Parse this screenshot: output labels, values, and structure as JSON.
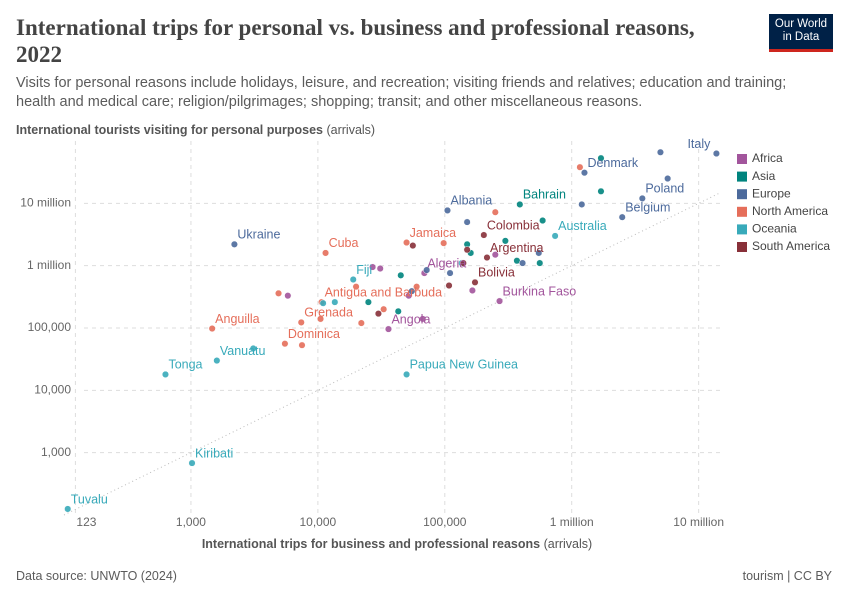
{
  "chart_data": {
    "type": "scatter",
    "title": "International trips for personal vs. business and professional reasons, 2022",
    "subtitle": "Visits for personal reasons include holidays, leisure, and recreation; visiting friends and relatives; education and training; health and medical care; religion/pilgrimages; shopping; transit; and other miscellaneous reasons.",
    "y_label": "International tourists visiting for personal purposes",
    "y_label_units": "(arrivals)",
    "x_label": "International trips for business and professional reasons",
    "x_label_units": "(arrivals)",
    "source": "Data source: UNWTO (2024)",
    "license": "tourism | CC BY",
    "logo": [
      "Our World",
      "in Data"
    ],
    "log_x": true,
    "log_y": true,
    "grid": true,
    "legend": "right",
    "xlim": [
      100,
      15000000
    ],
    "ylim": [
      100,
      100000000
    ],
    "xticks": [
      123,
      {
        "value": 1000,
        "label": "1,000"
      },
      {
        "value": 10000,
        "label": "10,000"
      },
      {
        "value": 100000,
        "label": "100,000"
      },
      {
        "value": 1000000,
        "label": "1 million"
      },
      {
        "value": 10000000,
        "label": "10 million"
      }
    ],
    "yticks": [
      {
        "value": 1000,
        "label": "1,000"
      },
      {
        "value": 10000,
        "label": "10,000"
      },
      {
        "value": 100000,
        "label": "100,000"
      },
      {
        "value": 1000000,
        "label": "1 million"
      },
      {
        "value": 10000000,
        "label": "10 million"
      }
    ],
    "series": [
      {
        "name": "Africa",
        "color": "#a2559c",
        "x": [
          270000,
          36000,
          69000,
          31000,
          27000,
          5800,
          52000,
          67000,
          165000,
          250000
        ],
        "values": [
          270000,
          96000,
          760000,
          900000,
          950000,
          330000,
          330000,
          140000,
          400000,
          1500000
        ],
        "labels": [
          "Burkina Faso",
          "Angola",
          "Algeria",
          null,
          null,
          null,
          null,
          null,
          null,
          null
        ]
      },
      {
        "name": "Asia",
        "color": "#00847e",
        "x": [
          390000,
          1700000,
          1700000,
          590000,
          560000,
          370000,
          300000,
          150000,
          160000,
          45000,
          43000,
          25000
        ],
        "values": [
          9600000,
          53000000,
          15600000,
          5300000,
          1100000,
          1200000,
          2500000,
          2200000,
          1600000,
          700000,
          185000,
          260000
        ],
        "labels": [
          "Bahrain",
          null,
          null,
          null,
          null,
          null,
          null,
          null,
          null,
          null,
          null,
          null
        ]
      },
      {
        "name": "Europe",
        "color": "#4c6a9c",
        "x": [
          13800000,
          1260000,
          3600000,
          2500000,
          105000,
          2200,
          5000000,
          5700000,
          1200000,
          150000,
          550000,
          110000,
          410000,
          55000,
          72000
        ],
        "values": [
          63000000,
          31000000,
          12000000,
          6000000,
          7700000,
          2200000,
          66000000,
          25000000,
          9600000,
          5000000,
          1600000,
          760000,
          1100000,
          390000,
          850000
        ],
        "labels": [
          "Italy",
          "Denmark",
          "Poland",
          "Belgium",
          "Albania",
          "Ukraine",
          null,
          null,
          null,
          null,
          null,
          null,
          null,
          null,
          null
        ]
      },
      {
        "name": "North America",
        "color": "#e56e5a",
        "x": [
          50000,
          11500,
          10700,
          7400,
          1470,
          5500,
          1160000,
          250000,
          98000,
          4900,
          10500,
          7500,
          22000,
          33000,
          20000,
          60000
        ],
        "values": [
          2350000,
          1600000,
          260000,
          123000,
          98000,
          56000,
          38000000,
          7200000,
          2300000,
          360000,
          140000,
          53000,
          120000,
          200000,
          460000,
          460000
        ],
        "labels": [
          "Jamaica",
          "Cuba",
          "Antigua and Barbuda",
          "Grenada",
          "Anguilla",
          "Dominica",
          null,
          null,
          null,
          null,
          null,
          null,
          null,
          null,
          null,
          null
        ]
      },
      {
        "name": "Oceania",
        "color": "#38aaba",
        "x": [
          740000,
          19000,
          1600,
          630,
          50000,
          1020,
          107,
          11000,
          13600,
          3100,
          136000
        ],
        "values": [
          3000000,
          600000,
          30000,
          18000,
          18000,
          680,
          125,
          250000,
          260000,
          47000,
          1100000
        ],
        "labels": [
          "Australia",
          "Fiji",
          "Vanuatu",
          "Tonga",
          "Papua New Guinea",
          "Kiribati",
          "Tuvalu",
          null,
          null,
          null,
          null
        ]
      },
      {
        "name": "South America",
        "color": "#883039",
        "x": [
          203000,
          215000,
          173000,
          56000,
          108000,
          150000,
          30000,
          140000
        ],
        "values": [
          3100000,
          1350000,
          540000,
          2100000,
          480000,
          1800000,
          170000,
          1100000
        ],
        "labels": [
          "Colombia",
          "Argentina",
          "Bolivia",
          null,
          null,
          null,
          null,
          null
        ]
      }
    ]
  }
}
